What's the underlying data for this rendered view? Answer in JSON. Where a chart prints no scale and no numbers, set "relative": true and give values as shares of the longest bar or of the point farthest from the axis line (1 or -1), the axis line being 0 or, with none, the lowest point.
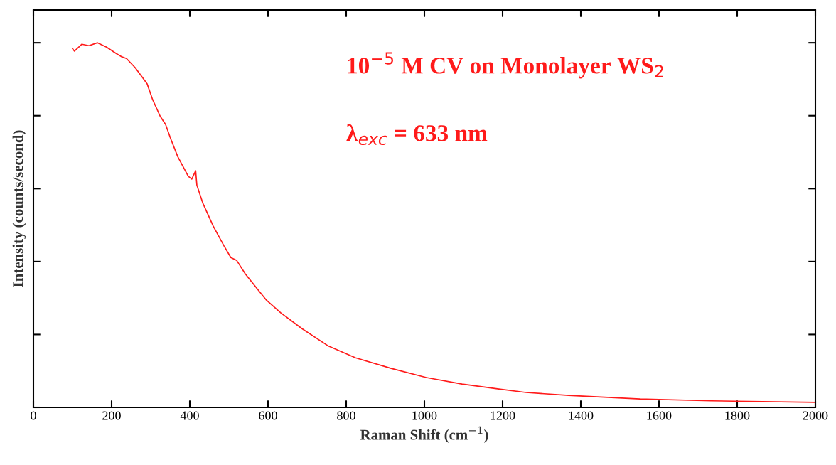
{
  "chart_data": {
    "type": "line",
    "relative": true,
    "xlabel": "Raman Shift (cm$^{−1}$)",
    "ylabel": "Intensity (counts/second)",
    "annotations": [
      "10$^{−5}$ M CV on Monolayer WS$_{2}$",
      "λ$_{exc}$ = 633 nm"
    ],
    "xlim": [
      0,
      2000
    ],
    "xticks": [
      0,
      200,
      400,
      600,
      800,
      1000,
      1200,
      1400,
      1600,
      1800,
      2000
    ],
    "series": [
      {
        "color": "#ff1a1a",
        "x": [
          100,
          105,
          124,
          142,
          164,
          187,
          211,
          227,
          238,
          260,
          278,
          291,
          305,
          324,
          338,
          351,
          369,
          396,
          405,
          415,
          418,
          433,
          460,
          487,
          505,
          520,
          542,
          578,
          596,
          633,
          687,
          755,
          824,
          915,
          1005,
          1096,
          1187,
          1260,
          1369,
          1551,
          1733,
          2000
        ],
        "values": [
          0.984,
          0.977,
          0.996,
          0.992,
          1.0,
          0.988,
          0.971,
          0.961,
          0.957,
          0.932,
          0.906,
          0.887,
          0.844,
          0.799,
          0.776,
          0.737,
          0.688,
          0.634,
          0.626,
          0.649,
          0.61,
          0.561,
          0.497,
          0.444,
          0.411,
          0.403,
          0.366,
          0.318,
          0.294,
          0.259,
          0.216,
          0.168,
          0.136,
          0.107,
          0.082,
          0.064,
          0.051,
          0.041,
          0.033,
          0.023,
          0.018,
          0.014
        ]
      }
    ]
  }
}
